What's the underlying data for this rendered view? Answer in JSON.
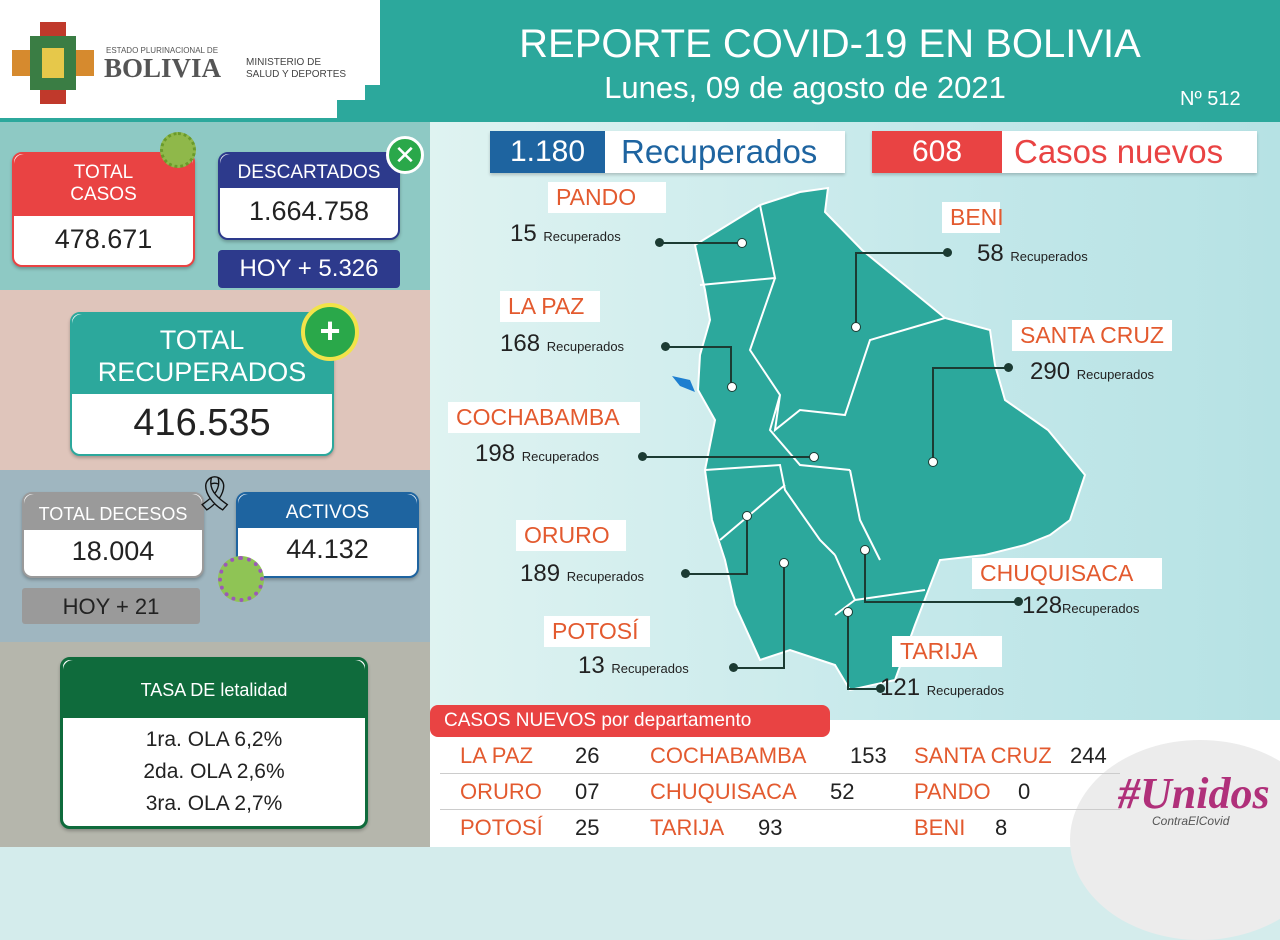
{
  "header": {
    "logo_small": "ESTADO PLURINACIONAL DE",
    "logo_big": "BOLIVIA",
    "ministry_line1": "MINISTERIO DE",
    "ministry_line2": "SALUD Y DEPORTES",
    "title": "REPORTE COVID-19 EN BOLIVIA",
    "date": "Lunes, 09 de agosto de 2021",
    "number": "Nº 512"
  },
  "left": {
    "total_casos": {
      "label1": "TOTAL",
      "label2": "CASOS",
      "value": "478.671"
    },
    "descartados": {
      "label": "DESCARTADOS",
      "value": "1.664.758",
      "today": "HOY + 5.326"
    },
    "total_recuperados": {
      "label1": "TOTAL",
      "label2": "RECUPERADOS",
      "value": "416.535"
    },
    "total_decesos": {
      "label": "TOTAL DECESOS",
      "value": "18.004",
      "today": "HOY + 21"
    },
    "activos": {
      "label": "ACTIVOS",
      "value": "44.132"
    },
    "letalidad": {
      "label": "TASA DE letalidad",
      "rows": [
        "1ra. OLA 6,2%",
        "2da. OLA 2,6%",
        "3ra. OLA 2,7%"
      ]
    }
  },
  "summary": {
    "recuperados_value": "1.180",
    "recuperados_label": "Recuperados",
    "nuevos_value": "608",
    "nuevos_label": "Casos nuevos"
  },
  "recuperados_suffix": "Recuperados",
  "departments": [
    {
      "name": "PANDO",
      "recovered": "15"
    },
    {
      "name": "BENI",
      "recovered": "58"
    },
    {
      "name": "LA PAZ",
      "recovered": "168"
    },
    {
      "name": "SANTA CRUZ",
      "recovered": "290"
    },
    {
      "name": "COCHABAMBA",
      "recovered": "198"
    },
    {
      "name": "ORURO",
      "recovered": "189"
    },
    {
      "name": "CHUQUISACA",
      "recovered": "128"
    },
    {
      "name": "POTOSÍ",
      "recovered": "13"
    },
    {
      "name": "TARIJA",
      "recovered": "121"
    }
  ],
  "casos_nuevos": {
    "title": "CASOS NUEVOS por departamento",
    "rows": [
      [
        [
          "LA PAZ",
          "26"
        ],
        [
          "COCHABAMBA",
          "153"
        ],
        [
          "SANTA CRUZ",
          "244"
        ]
      ],
      [
        [
          "ORURO",
          "07"
        ],
        [
          "CHUQUISACA",
          "52"
        ],
        [
          "PANDO",
          "0"
        ]
      ],
      [
        [
          "POTOSÍ",
          "25"
        ],
        [
          "TARIJA",
          "93"
        ],
        [
          "BENI",
          "8"
        ]
      ]
    ]
  },
  "campaign": {
    "hashtag": "#Unidos",
    "sub": "ContraElCovid"
  },
  "colors": {
    "teal": "#2ca89c",
    "red": "#e94343",
    "navy": "#2d3a8c",
    "blue": "#1e64a0",
    "green": "#0f6b3c"
  }
}
